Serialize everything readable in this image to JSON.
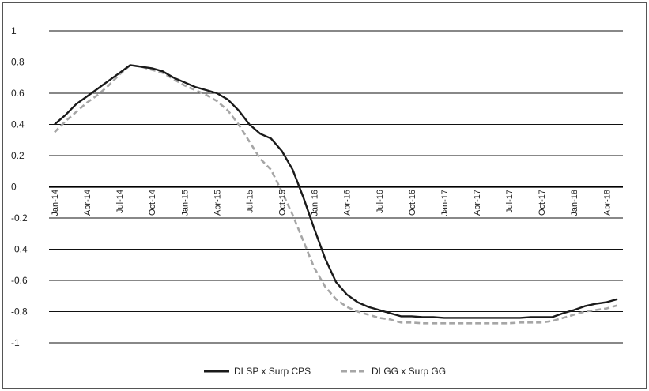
{
  "chart_data": {
    "type": "line",
    "title": "",
    "xlabel": "",
    "ylabel": "",
    "ylim": [
      -1,
      1
    ],
    "yticks": [
      "1",
      "0.8",
      "0.6",
      "0.4",
      "0.2",
      "0",
      "-0.2",
      "-0.4",
      "-0.6",
      "-0.8",
      "-1"
    ],
    "xtick_labels": [
      "Jan-14",
      "Abr-14",
      "Jul-14",
      "Oct-14",
      "Jan-15",
      "Abr-15",
      "Jul-15",
      "Oct-15",
      "Jan-16",
      "Abr-16",
      "Jul-16",
      "Oct-16",
      "Jan-17",
      "Abr-17",
      "Jul-17",
      "Oct-17",
      "Jan-18",
      "Abr-18"
    ],
    "x": [
      "Jan-14",
      "Feb-14",
      "Mar-14",
      "Apr-14",
      "May-14",
      "Jun-14",
      "Jul-14",
      "Aug-14",
      "Sep-14",
      "Oct-14",
      "Nov-14",
      "Dec-14",
      "Jan-15",
      "Feb-15",
      "Mar-15",
      "Apr-15",
      "May-15",
      "Jun-15",
      "Jul-15",
      "Aug-15",
      "Sep-15",
      "Oct-15",
      "Nov-15",
      "Dec-15",
      "Jan-16",
      "Feb-16",
      "Mar-16",
      "Apr-16",
      "May-16",
      "Jun-16",
      "Jul-16",
      "Aug-16",
      "Sep-16",
      "Oct-16",
      "Nov-16",
      "Dec-16",
      "Jan-17",
      "Feb-17",
      "Mar-17",
      "Apr-17",
      "May-17",
      "Jun-17",
      "Jul-17",
      "Aug-17",
      "Sep-17",
      "Oct-17",
      "Nov-17",
      "Dec-17",
      "Jan-18",
      "Feb-18",
      "Mar-18",
      "Apr-18",
      "May-18"
    ],
    "grid": true,
    "legend_position": "bottom",
    "series": [
      {
        "name": "DLSP x Surp CPS",
        "color": "#1a1a1a",
        "style": "solid",
        "values": [
          0.4,
          0.46,
          0.53,
          0.58,
          0.63,
          0.68,
          0.73,
          0.78,
          0.77,
          0.76,
          0.74,
          0.7,
          0.67,
          0.64,
          0.62,
          0.6,
          0.56,
          0.49,
          0.4,
          0.34,
          0.31,
          0.23,
          0.11,
          -0.07,
          -0.27,
          -0.46,
          -0.61,
          -0.69,
          -0.74,
          -0.77,
          -0.79,
          -0.81,
          -0.83,
          -0.83,
          -0.835,
          -0.835,
          -0.84,
          -0.84,
          -0.84,
          -0.84,
          -0.84,
          -0.84,
          -0.84,
          -0.84,
          -0.835,
          -0.835,
          -0.835,
          -0.81,
          -0.79,
          -0.765,
          -0.75,
          -0.74,
          -0.72
        ]
      },
      {
        "name": "DLGG x Surp GG",
        "color": "#a6a6a6",
        "style": "dashed",
        "values": [
          0.35,
          0.42,
          0.48,
          0.54,
          0.59,
          0.65,
          0.72,
          0.78,
          0.77,
          0.75,
          0.73,
          0.69,
          0.65,
          0.62,
          0.59,
          0.55,
          0.49,
          0.4,
          0.29,
          0.18,
          0.11,
          -0.03,
          -0.18,
          -0.35,
          -0.52,
          -0.64,
          -0.72,
          -0.77,
          -0.8,
          -0.82,
          -0.84,
          -0.85,
          -0.87,
          -0.87,
          -0.875,
          -0.875,
          -0.875,
          -0.875,
          -0.875,
          -0.875,
          -0.875,
          -0.875,
          -0.875,
          -0.87,
          -0.87,
          -0.87,
          -0.86,
          -0.84,
          -0.82,
          -0.8,
          -0.79,
          -0.78,
          -0.76
        ]
      }
    ]
  }
}
